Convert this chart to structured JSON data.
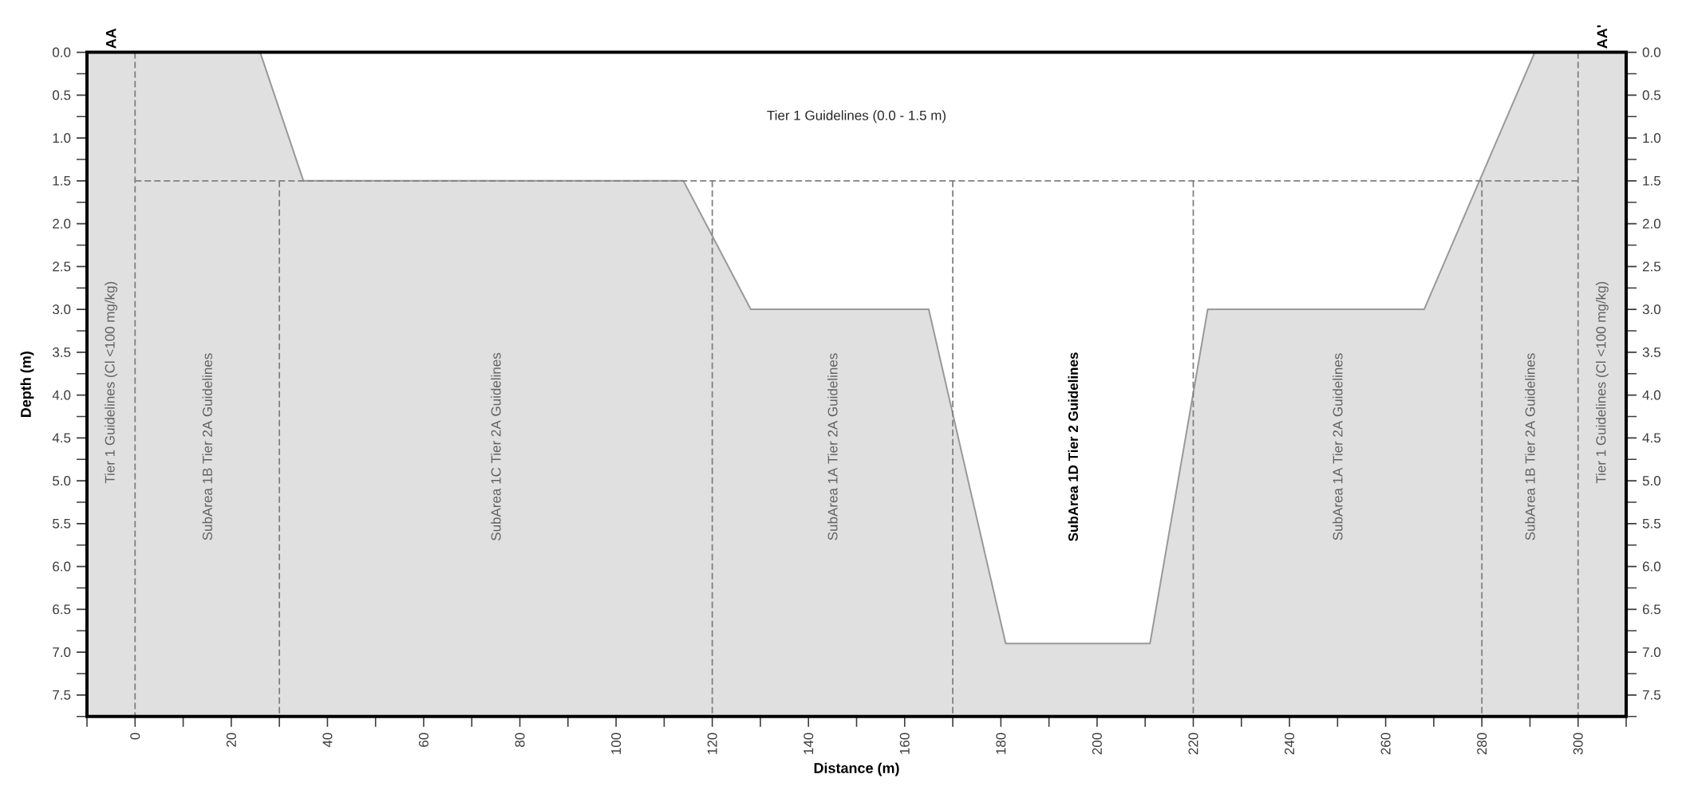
{
  "chart_data": {
    "type": "area",
    "xlabel": "Distance (m)",
    "ylabel": "Depth (m)",
    "x": [
      -10,
      26,
      35,
      114,
      128,
      165,
      181,
      211,
      223,
      268,
      291,
      310
    ],
    "series": [
      {
        "color": "#ffffff",
        "values": [
          0,
          0,
          1.5,
          1.5,
          3.0,
          3.0,
          6.9,
          6.9,
          3.0,
          3.0,
          0,
          0
        ]
      }
    ],
    "xlim": [
      -10,
      310
    ],
    "xticks": [
      {
        "value": -10,
        "label": null
      },
      0,
      {
        "value": 10,
        "label": null
      },
      20,
      {
        "value": 30,
        "label": null
      },
      40,
      {
        "value": 50,
        "label": null
      },
      60,
      {
        "value": 70,
        "label": null
      },
      80,
      {
        "value": 90,
        "label": null
      },
      100,
      {
        "value": 110,
        "label": null
      },
      120,
      {
        "value": 130,
        "label": null
      },
      140,
      {
        "value": 150,
        "label": null
      },
      160,
      {
        "value": 170,
        "label": null
      },
      180,
      {
        "value": 190,
        "label": null
      },
      200,
      {
        "value": 210,
        "label": null
      },
      220,
      {
        "value": 230,
        "label": null
      },
      240,
      {
        "value": 250,
        "label": null
      },
      260,
      {
        "value": 270,
        "label": null
      },
      280,
      {
        "value": 290,
        "label": null
      },
      300,
      {
        "value": 310,
        "label": null
      }
    ],
    "ylim": [
      7.75,
      0
    ],
    "yticks": [
      {
        "value": 0,
        "label": "0.0"
      },
      {
        "value": 0.25,
        "label": null
      },
      0.5,
      {
        "value": 0.75,
        "label": null
      },
      {
        "value": 1,
        "label": "1.0"
      },
      {
        "value": 1.25,
        "label": null
      },
      1.5,
      {
        "value": 1.75,
        "label": null
      },
      {
        "value": 2,
        "label": "2.0"
      },
      {
        "value": 2.25,
        "label": null
      },
      2.5,
      {
        "value": 2.75,
        "label": null
      },
      {
        "value": 3,
        "label": "3.0"
      },
      {
        "value": 3.25,
        "label": null
      },
      3.5,
      {
        "value": 3.75,
        "label": null
      },
      {
        "value": 4,
        "label": "4.0"
      },
      {
        "value": 4.25,
        "label": null
      },
      4.5,
      {
        "value": 4.75,
        "label": null
      },
      {
        "value": 5,
        "label": "5.0"
      },
      {
        "value": 5.25,
        "label": null
      },
      5.5,
      {
        "value": 5.75,
        "label": null
      },
      {
        "value": 6,
        "label": "6.0"
      },
      {
        "value": 6.25,
        "label": null
      },
      6.5,
      {
        "value": 6.75,
        "label": null
      },
      {
        "value": 7,
        "label": "7.0"
      },
      {
        "value": 7.25,
        "label": null
      },
      7.5,
      {
        "value": 7.75,
        "label": null
      }
    ],
    "y2lim": [
      7.75,
      0
    ],
    "y2ticks": [
      {
        "value": 0,
        "label": "0.0"
      },
      {
        "value": 0.25,
        "label": null
      },
      0.5,
      {
        "value": 0.75,
        "label": null
      },
      {
        "value": 1,
        "label": "1.0"
      },
      {
        "value": 1.25,
        "label": null
      },
      1.5,
      {
        "value": 1.75,
        "label": null
      },
      {
        "value": 2,
        "label": "2.0"
      },
      {
        "value": 2.25,
        "label": null
      },
      2.5,
      {
        "value": 2.75,
        "label": null
      },
      {
        "value": 3,
        "label": "3.0"
      },
      {
        "value": 3.25,
        "label": null
      },
      3.5,
      {
        "value": 3.75,
        "label": null
      },
      {
        "value": 4,
        "label": "4.0"
      },
      {
        "value": 4.25,
        "label": null
      },
      4.5,
      {
        "value": 4.75,
        "label": null
      },
      {
        "value": 5,
        "label": "5.0"
      },
      {
        "value": 5.25,
        "label": null
      },
      5.5,
      {
        "value": 5.75,
        "label": null
      },
      {
        "value": 6,
        "label": "6.0"
      },
      {
        "value": 6.25,
        "label": null
      },
      6.5,
      {
        "value": 6.75,
        "label": null
      },
      {
        "value": 7,
        "label": "7.0"
      },
      {
        "value": 7.25,
        "label": null
      },
      7.5,
      {
        "value": 7.75,
        "label": null
      }
    ],
    "ref_lines": [
      {
        "axis": "x",
        "value": 0,
        "color": "#808080",
        "line_style": "dashed"
      },
      {
        "axis": "x",
        "value": 30,
        "color": "#808080",
        "line_style": "dashed"
      },
      {
        "axis": "x",
        "value": 120,
        "color": "#808080",
        "line_style": "dashed"
      },
      {
        "axis": "x",
        "value": 170,
        "color": "#808080",
        "line_style": "dashed"
      },
      {
        "axis": "x",
        "value": 220,
        "color": "#808080",
        "line_style": "dashed"
      },
      {
        "axis": "x",
        "value": 280,
        "color": "#808080",
        "line_style": "dashed"
      },
      {
        "axis": "x",
        "value": 300,
        "color": "#808080",
        "line_style": "dashed"
      },
      {
        "axis": "y",
        "value": 1.5,
        "color": "#808080",
        "line_style": "dashed"
      }
    ],
    "annotations": [
      "AA",
      "AA'",
      "Tier 1 Guidelines (0.0 - 1.5 m)",
      "Tier 1 Guidelines (Cl <100 mg/kg)",
      "SubArea 1B Tier 2A Guidelines",
      "SubArea 1C Tier 2A Guidelines",
      "SubArea 1A Tier 2A Guidelines",
      "SubArea 1D Tier 2 Guidelines",
      "SubArea 1A Tier 2A Guidelines",
      "SubArea 1B Tier 2A Guidelines",
      "Tier 1 Guidelines (Cl <100 mg/kg)"
    ]
  }
}
